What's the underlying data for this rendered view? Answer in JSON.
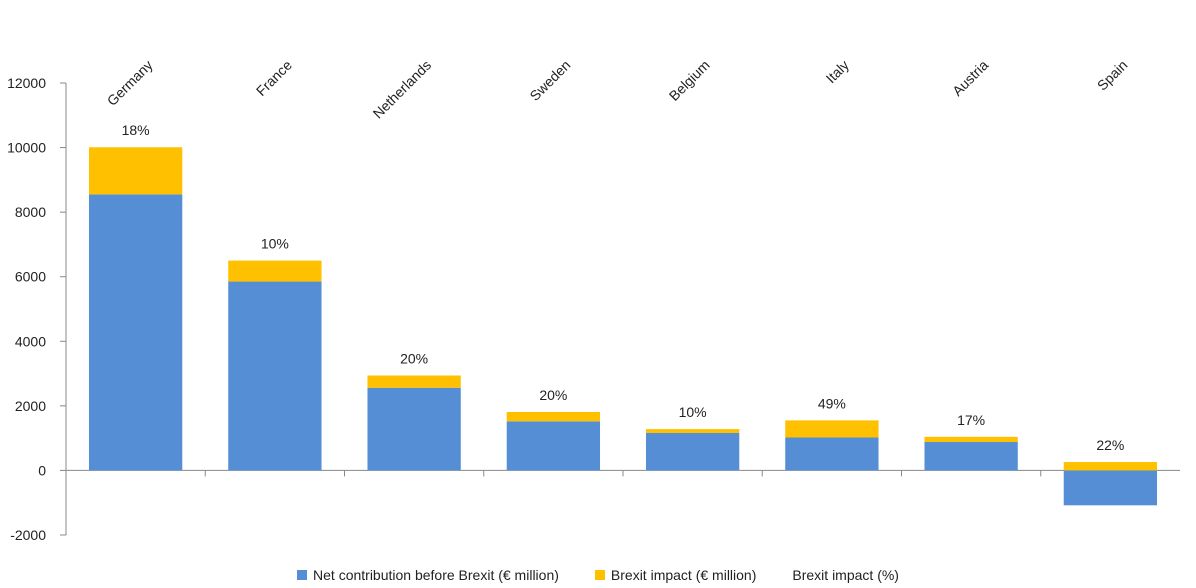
{
  "colors": {
    "net": "#558ED5",
    "impact": "#FFC000",
    "axis": "#888888"
  },
  "chart_data": {
    "type": "bar",
    "stacked": true,
    "categories": [
      "Germany",
      "France",
      "Netherlands",
      "Sweden",
      "Belgium",
      "Italy",
      "Austria",
      "Spain"
    ],
    "series": [
      {
        "name": "Net contribution before Brexit  (€ million)",
        "values": [
          8550,
          5850,
          2560,
          1520,
          1160,
          1020,
          880,
          -1080
        ]
      },
      {
        "name": "Brexit impact  (€ million)",
        "values": [
          1460,
          650,
          380,
          290,
          120,
          530,
          160,
          260
        ]
      },
      {
        "name": "Brexit impact (%)",
        "values": [
          "18%",
          "10%",
          "20%",
          "20%",
          "10%",
          "49%",
          "17%",
          "22%"
        ]
      }
    ],
    "yticks": [
      "12000",
      "10000",
      "8000",
      "6000",
      "4000",
      "2000",
      "0",
      "-2000"
    ],
    "ylim": [
      -2000,
      12000
    ],
    "xaxis_position": "top",
    "legend_position": "bottom",
    "grid": false
  }
}
